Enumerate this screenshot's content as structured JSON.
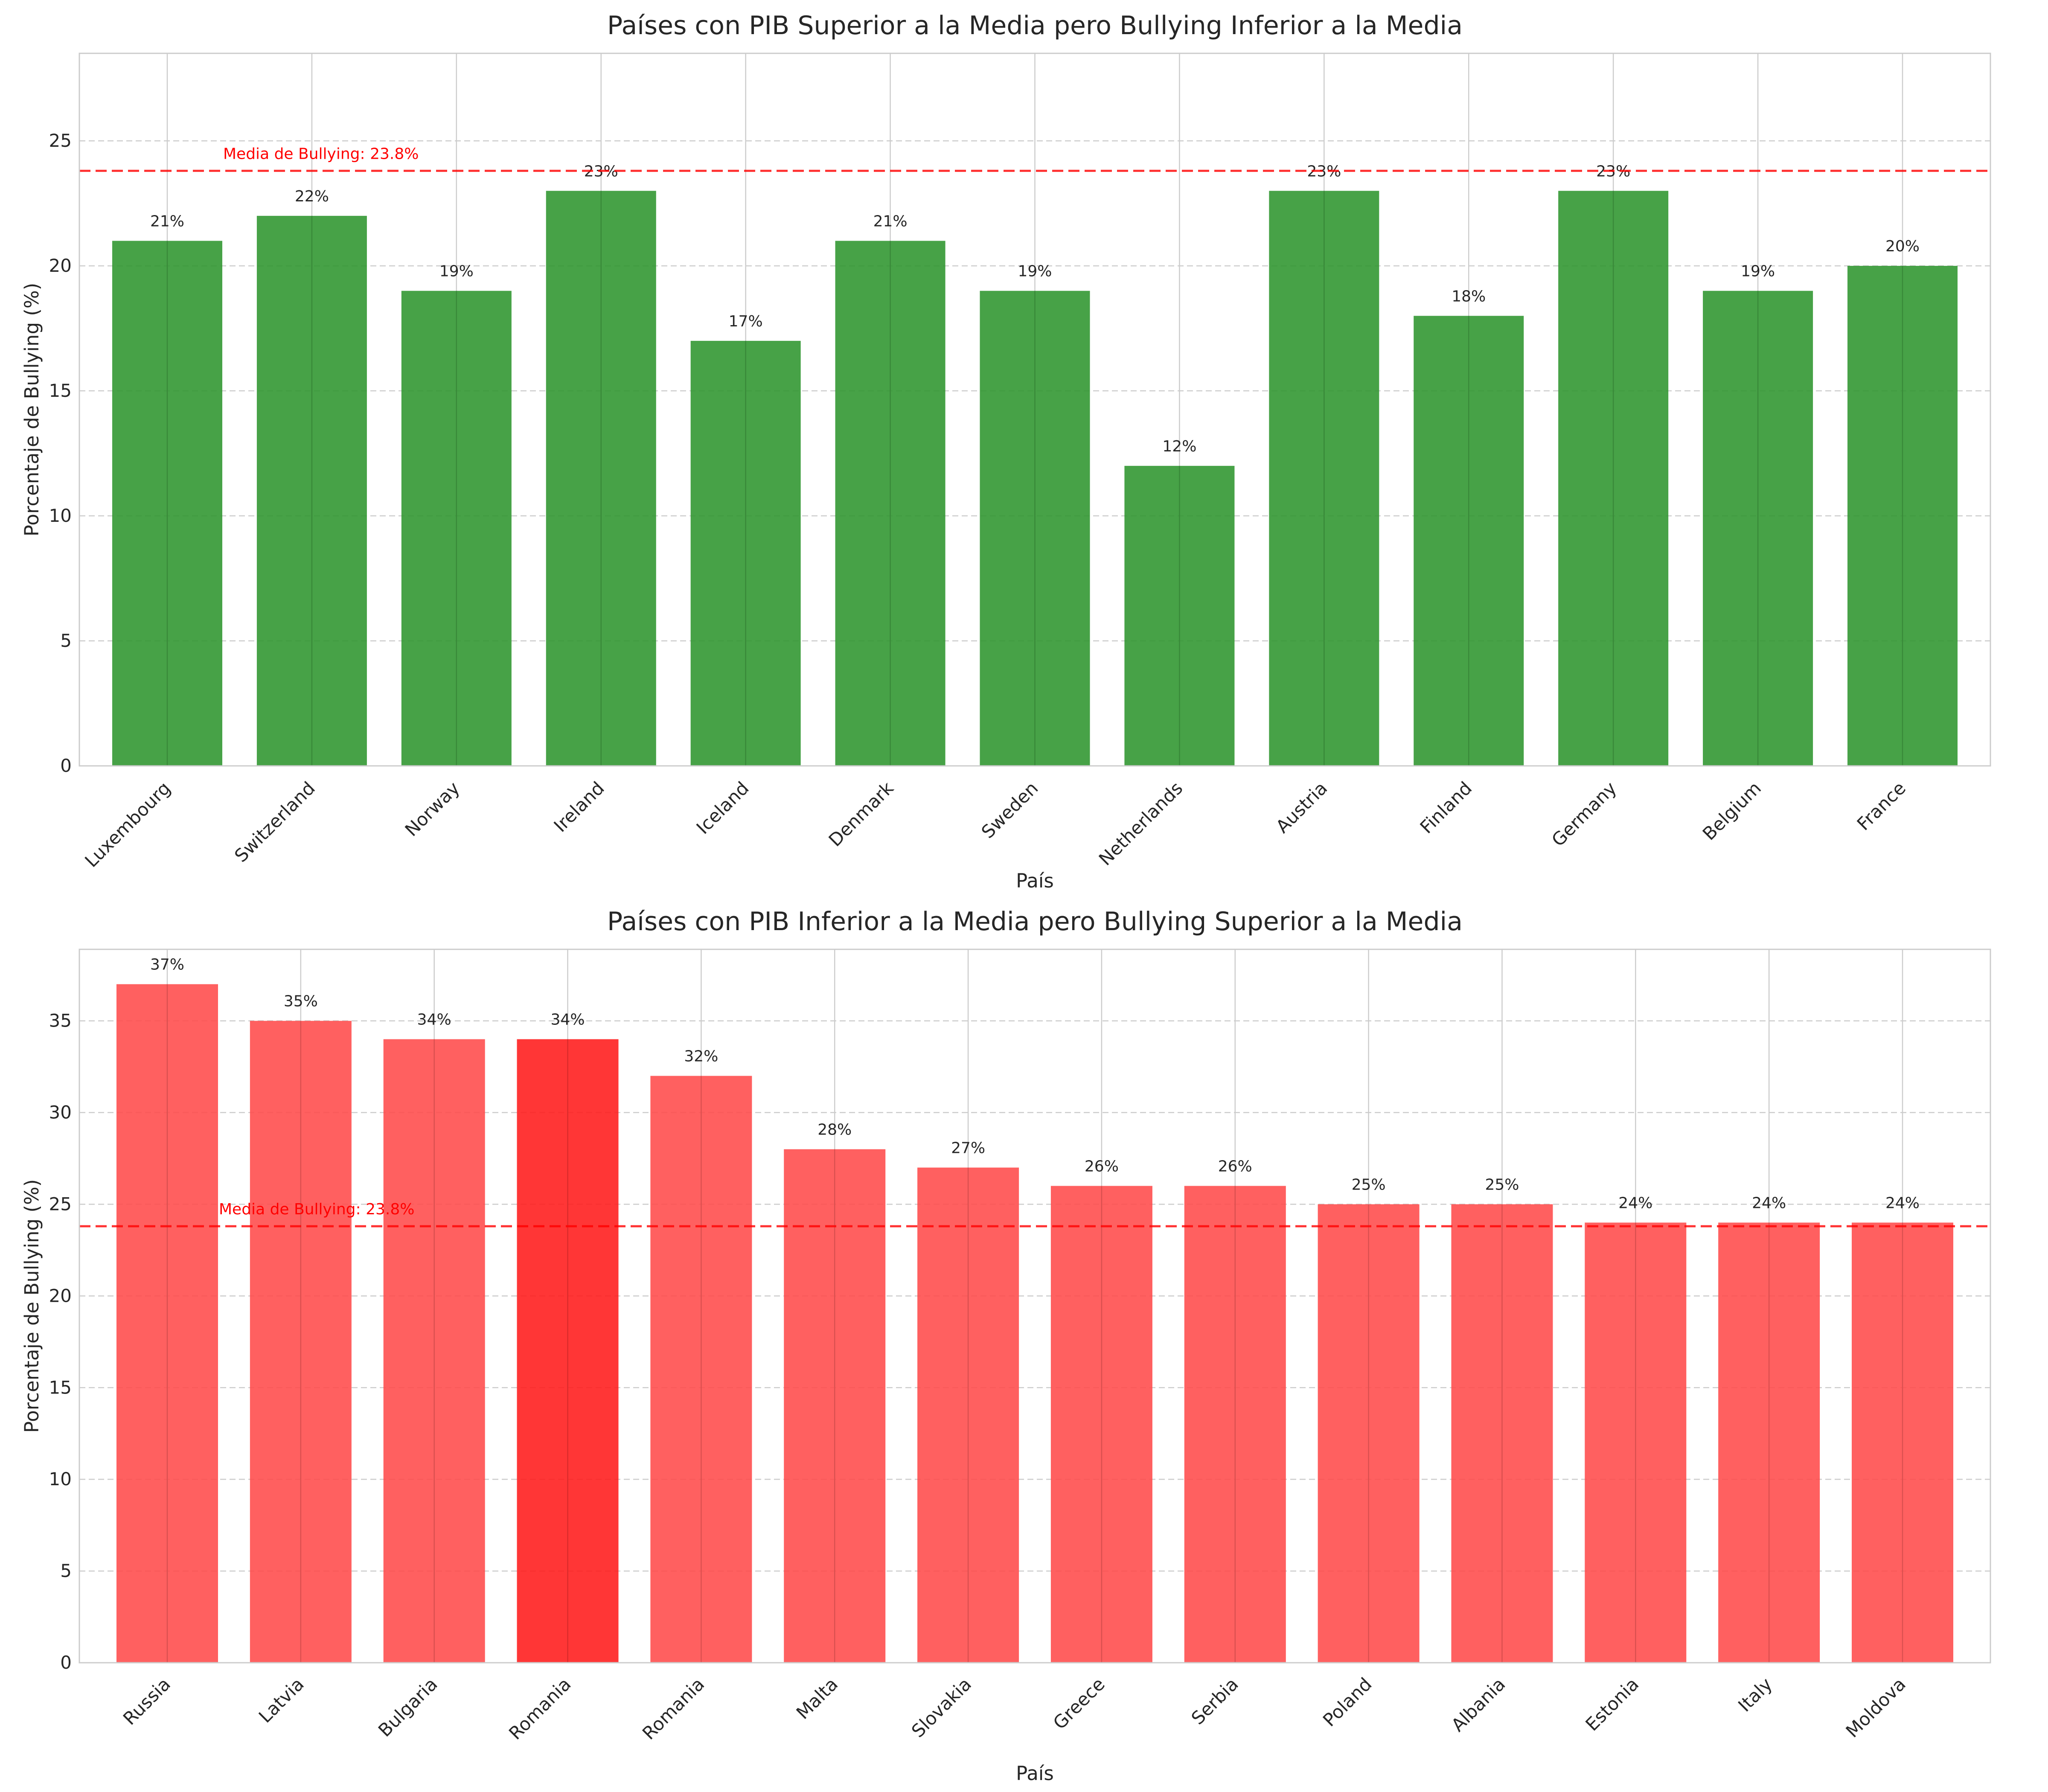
{
  "chart_data": [
    {
      "type": "bar",
      "title": "Países con PIB Superior a la Media pero Bullying Inferior a la Media",
      "xlabel": "País",
      "ylabel": "Porcentaje de Bullying (%)",
      "ylim": [
        0,
        28.5
      ],
      "yticks": [
        0,
        5,
        10,
        15,
        20,
        25
      ],
      "grid": true,
      "categories": [
        "Luxembourg",
        "Switzerland",
        "Norway",
        "Ireland",
        "Iceland",
        "Denmark",
        "Sweden",
        "Netherlands",
        "Austria",
        "Finland",
        "Germany",
        "Belgium",
        "France"
      ],
      "values": [
        21,
        22,
        19,
        23,
        17,
        21,
        19,
        12,
        23,
        18,
        23,
        19,
        20
      ],
      "value_labels": [
        "21%",
        "22%",
        "19%",
        "23%",
        "17%",
        "21%",
        "19%",
        "12%",
        "23%",
        "18%",
        "23%",
        "19%",
        "20%"
      ],
      "bar_color": "#2e952e",
      "highlight_index": null,
      "highlight_color": null,
      "mean_line": {
        "value": 23.8,
        "label": "Media de Bullying: 23.8%",
        "color": "#ff0000"
      }
    },
    {
      "type": "bar",
      "title": "Países con PIB Inferior a la Media pero Bullying Superior a la Media",
      "xlabel": "País",
      "ylabel": "Porcentaje de Bullying (%)",
      "ylim": [
        0,
        38.9
      ],
      "yticks": [
        0,
        5,
        10,
        15,
        20,
        25,
        30,
        35
      ],
      "grid": true,
      "categories": [
        "Russia",
        "Latvia",
        "Bulgaria",
        "Romania",
        "Romania",
        "Malta",
        "Slovakia",
        "Greece",
        "Serbia",
        "Poland",
        "Albania",
        "Estonia",
        "Italy",
        "Moldova"
      ],
      "values": [
        37,
        35,
        34,
        34,
        32,
        28,
        27,
        26,
        26,
        25,
        25,
        24,
        24,
        24
      ],
      "value_labels": [
        "37%",
        "35%",
        "34%",
        "34%",
        "32%",
        "28%",
        "27%",
        "26%",
        "26%",
        "25%",
        "25%",
        "24%",
        "24%",
        "24%"
      ],
      "bar_color": "#ff4a4a",
      "highlight_index": 3,
      "highlight_color": "#ff1a1a",
      "mean_line": {
        "value": 23.8,
        "label": "Media de Bullying: 23.8%",
        "color": "#ff0000"
      }
    }
  ]
}
